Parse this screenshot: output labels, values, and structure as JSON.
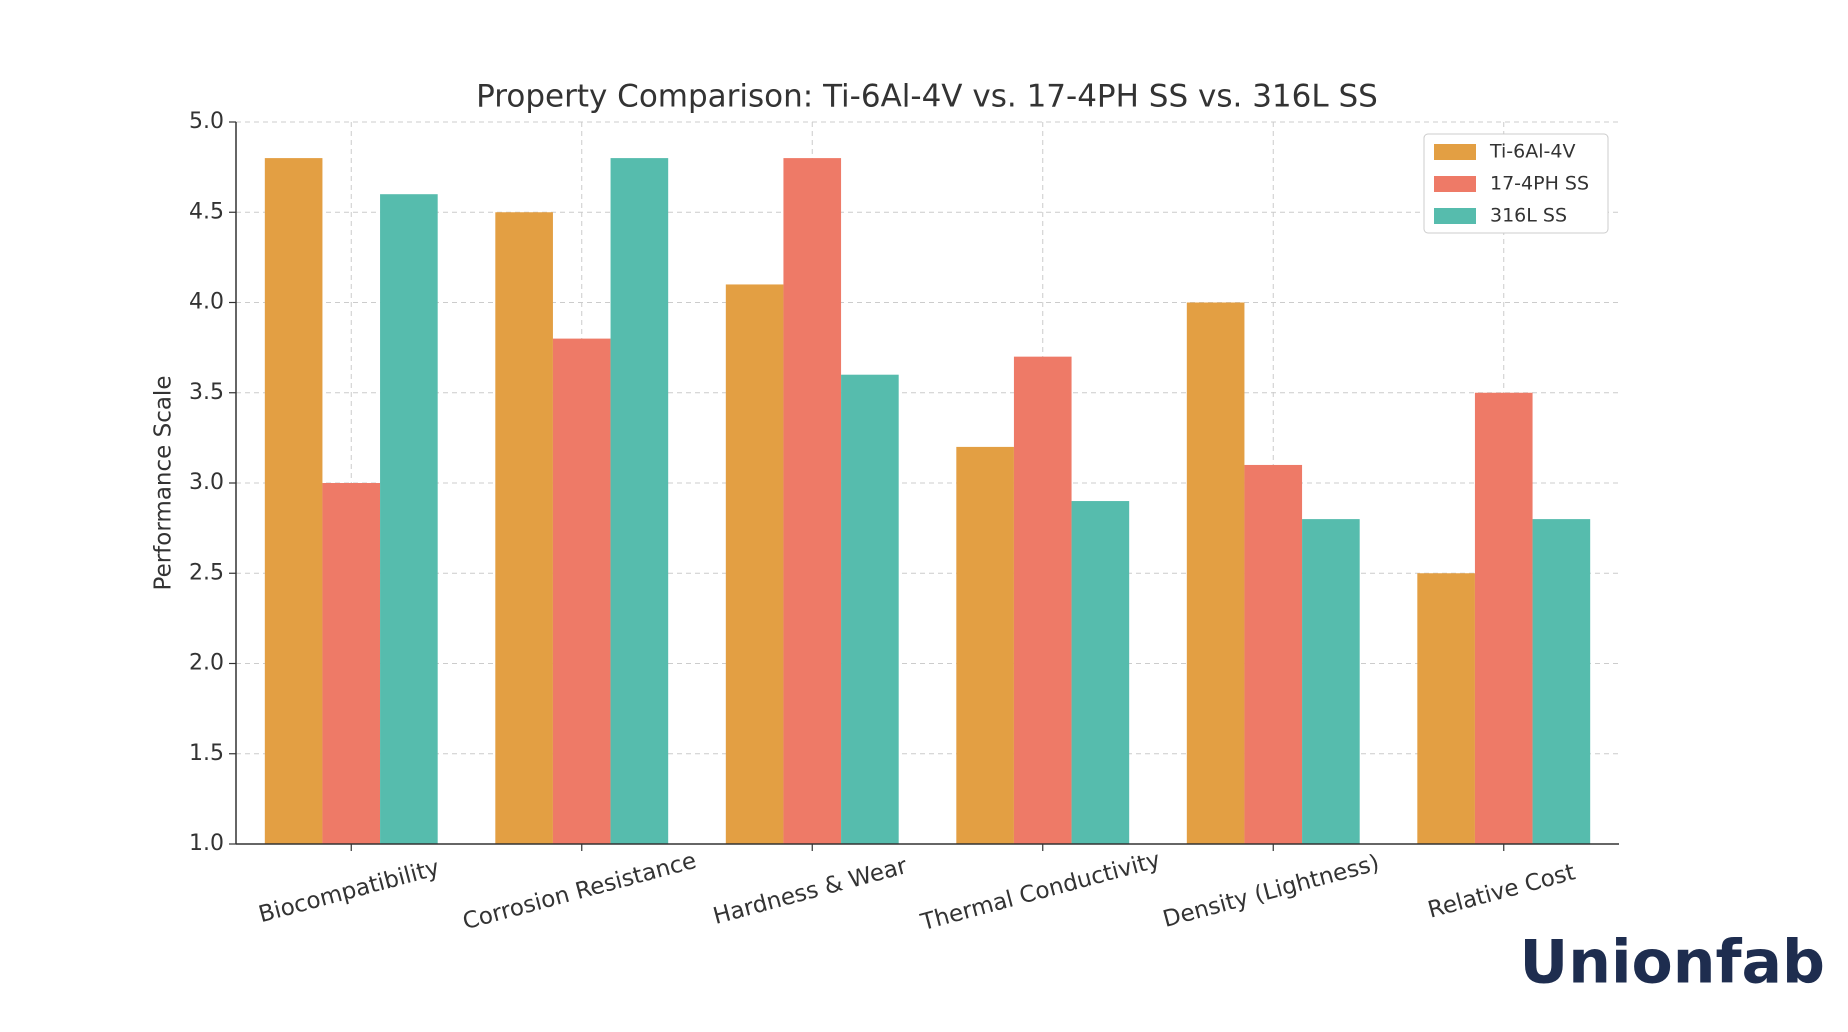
{
  "chart_data": {
    "type": "bar",
    "title": "Property Comparison: Ti-6Al-4V vs. 17-4PH SS vs. 316L SS",
    "y_label": "Performance Scale",
    "categories": [
      "Biocompatibility",
      "Corrosion Resistance",
      "Hardness & Wear",
      "Thermal Conductivity",
      "Density (Lightness)",
      "Relative Cost"
    ],
    "series": [
      {
        "name": "Ti-6Al-4V",
        "color": "#e39f43",
        "values": [
          4.8,
          4.5,
          4.1,
          3.2,
          4.0,
          2.5
        ]
      },
      {
        "name": "17-4PH SS",
        "color": "#ee7a67",
        "values": [
          3.0,
          3.8,
          4.8,
          3.7,
          3.1,
          3.5
        ]
      },
      {
        "name": "316L SS",
        "color": "#56bcad",
        "values": [
          4.6,
          4.8,
          3.6,
          2.9,
          2.8,
          2.8
        ]
      }
    ],
    "ylim": [
      1,
      5
    ],
    "yticks": [
      {
        "value": 1,
        "label": "1.0"
      },
      {
        "value": 1.5,
        "label": "1.5"
      },
      {
        "value": 2,
        "label": "2.0"
      },
      {
        "value": 2.5,
        "label": "2.5"
      },
      {
        "value": 3,
        "label": "3.0"
      },
      {
        "value": 3.5,
        "label": "3.5"
      },
      {
        "value": 4,
        "label": "4.0"
      },
      {
        "value": 4.5,
        "label": "4.5"
      },
      {
        "value": 5,
        "label": "5.0"
      }
    ],
    "grid": true,
    "legend": "upper right"
  },
  "logo": "Unionfab"
}
